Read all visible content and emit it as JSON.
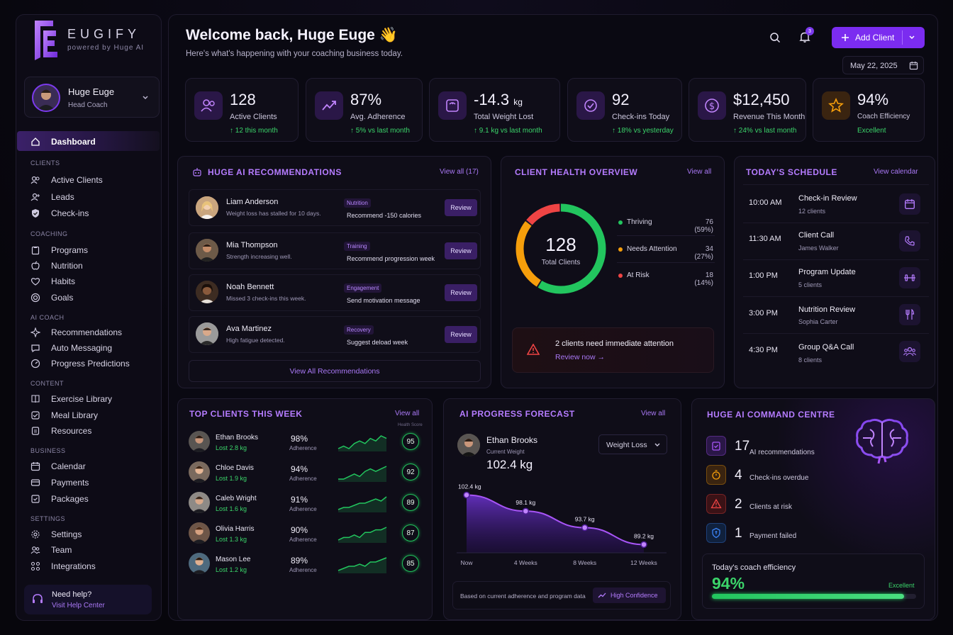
{
  "brand": {
    "name": "EUGIFY",
    "tagline": "powered by Huge AI"
  },
  "profile": {
    "name": "Huge Euge",
    "role": "Head Coach"
  },
  "nav": {
    "dashboard": "Dashboard",
    "sections": {
      "clients": "CLIENTS",
      "coaching": "COACHING",
      "ai_coach": "AI COACH",
      "content": "CONTENT",
      "business": "BUSINESS",
      "settings": "SETTINGS"
    },
    "items": {
      "active_clients": "Active Clients",
      "leads": "Leads",
      "check_ins": "Check-ins",
      "programs": "Programs",
      "nutrition": "Nutrition",
      "habits": "Habits",
      "goals": "Goals",
      "recommendations": "Recommendations",
      "auto_messaging": "Auto Messaging",
      "progress_predictions": "Progress Predictions",
      "exercise_library": "Exercise Library",
      "meal_library": "Meal Library",
      "resources": "Resources",
      "calendar": "Calendar",
      "payments": "Payments",
      "packages": "Packages",
      "settings": "Settings",
      "team": "Team",
      "integrations": "Integrations"
    }
  },
  "help": {
    "title": "Need help?",
    "link": "Visit Help Center"
  },
  "header": {
    "title": "Welcome back, Huge Euge 👋",
    "subtitle": "Here's what's happening with your coaching business today.",
    "notifications": "3",
    "add_client": "Add Client",
    "date": "May 22, 2025"
  },
  "stats": {
    "active_clients": {
      "value": "128",
      "label": "Active Clients",
      "change": "↑ 12 this month"
    },
    "adherence": {
      "value": "87%",
      "label": "Avg. Adherence",
      "change": "↑ 5% vs last month"
    },
    "weight_lost": {
      "value": "-14.3",
      "unit": "kg",
      "label": "Total Weight Lost",
      "change": "↑ 9.1 kg vs last month"
    },
    "checkins": {
      "value": "92",
      "label": "Check-ins Today",
      "change": "↑ 18% vs yesterday"
    },
    "revenue": {
      "value": "$12,450",
      "label": "Revenue This Month",
      "change": "↑ 24% vs last month"
    },
    "efficiency": {
      "value": "94%",
      "label": "Coach Efficiency",
      "change": "Excellent"
    }
  },
  "recommendations": {
    "title": "HUGE AI RECOMMENDATIONS",
    "view_all": "View all (17)",
    "items": [
      {
        "name": "Liam Anderson",
        "note": "Weight loss has stalled for 10 days.",
        "tag": "Nutrition",
        "action": "Recommend -150 calories",
        "button": "Review"
      },
      {
        "name": "Mia Thompson",
        "note": "Strength increasing well.",
        "tag": "Training",
        "action": "Recommend progression week",
        "button": "Review"
      },
      {
        "name": "Noah Bennett",
        "note": "Missed 3 check-ins this week.",
        "tag": "Engagement",
        "action": "Send motivation message",
        "button": "Review"
      },
      {
        "name": "Ava Martinez",
        "note": "High fatigue detected.",
        "tag": "Recovery",
        "action": "Suggest deload week",
        "button": "Review"
      }
    ],
    "footer": "View All Recommendations"
  },
  "health": {
    "title": "CLIENT HEALTH OVERVIEW",
    "view_all": "View all",
    "total": "128",
    "total_label": "Total Clients",
    "segments": [
      {
        "label": "Thriving",
        "value": "76 (59%)",
        "fraction": 0.59,
        "color": "#22c55e"
      },
      {
        "label": "Needs Attention",
        "value": "34 (27%)",
        "fraction": 0.27,
        "color": "#f59e0b"
      },
      {
        "label": "At Risk",
        "value": "18 (14%)",
        "fraction": 0.14,
        "color": "#ef4444"
      }
    ],
    "alert": "2 clients need immediate attention",
    "alert_link": "Review now →"
  },
  "schedule": {
    "title": "TODAY'S SCHEDULE",
    "view": "View calendar",
    "items": [
      {
        "time": "10:00 AM",
        "title": "Check-in Review",
        "sub": "12 clients",
        "icon": "calendar-icon"
      },
      {
        "time": "11:30 AM",
        "title": "Client Call",
        "sub": "James Walker",
        "icon": "phone-icon"
      },
      {
        "time": "1:00 PM",
        "title": "Program Update",
        "sub": "5 clients",
        "icon": "dumbbell-icon"
      },
      {
        "time": "3:00 PM",
        "title": "Nutrition Review",
        "sub": "Sophia Carter",
        "icon": "utensils-icon"
      },
      {
        "time": "4:30 PM",
        "title": "Group Q&A Call",
        "sub": "8 clients",
        "icon": "group-icon"
      }
    ]
  },
  "top_clients": {
    "title": "TOP CLIENTS THIS WEEK",
    "view_all": "View all",
    "score_label": "Health Score",
    "items": [
      {
        "name": "Ethan Brooks",
        "lost": "Lost 2.8 kg",
        "pct": "98%",
        "adh": "Adherence",
        "score": "95",
        "spark": [
          3,
          4,
          3,
          5,
          6,
          5,
          7,
          6,
          8,
          7
        ]
      },
      {
        "name": "Chloe Davis",
        "lost": "Lost 1.9 kg",
        "pct": "94%",
        "adh": "Adherence",
        "score": "92",
        "spark": [
          3,
          3,
          4,
          5,
          4,
          6,
          7,
          6,
          7,
          8
        ]
      },
      {
        "name": "Caleb Wright",
        "lost": "Lost 1.6 kg",
        "pct": "91%",
        "adh": "Adherence",
        "score": "89",
        "spark": [
          2,
          3,
          3,
          4,
          5,
          5,
          6,
          7,
          6,
          8
        ]
      },
      {
        "name": "Olivia Harris",
        "lost": "Lost 1.3 kg",
        "pct": "90%",
        "adh": "Adherence",
        "score": "87",
        "spark": [
          3,
          4,
          4,
          5,
          4,
          6,
          6,
          7,
          7,
          8
        ]
      },
      {
        "name": "Mason Lee",
        "lost": "Lost 1.2 kg",
        "pct": "89%",
        "adh": "Adherence",
        "score": "85",
        "spark": [
          2,
          3,
          4,
          4,
          5,
          4,
          6,
          6,
          7,
          8
        ]
      }
    ]
  },
  "forecast": {
    "title": "AI PROGRESS FORECAST",
    "view_all": "View all",
    "client": "Ethan Brooks",
    "current_label": "Current Weight",
    "current": "102.4 kg",
    "goal_select": "Weight Loss",
    "footer": "Based on current adherence and program data",
    "confidence": "High Confidence"
  },
  "chart_data": {
    "type": "area",
    "categories": [
      "Now",
      "4 Weeks",
      "8 Weeks",
      "12 Weeks"
    ],
    "x": [
      0,
      4,
      8,
      12
    ],
    "values": [
      102.4,
      98.1,
      93.7,
      89.2
    ],
    "labels": [
      "102.4 kg",
      "98.1 kg",
      "93.7 kg",
      "89.2 kg"
    ],
    "ylim": [
      87,
      104
    ],
    "color": "#a855f7"
  },
  "command": {
    "title": "HUGE AI COMMAND CENTRE",
    "items": [
      {
        "num": "17",
        "label": "AI recommendations",
        "color": "#a855f7",
        "bg": "#2a1747",
        "icon": "clipboard-icon"
      },
      {
        "num": "4",
        "label": "Check-ins overdue",
        "color": "#f59e0b",
        "bg": "#3a2410",
        "icon": "timer-icon"
      },
      {
        "num": "2",
        "label": "Clients at risk",
        "color": "#ef4444",
        "bg": "#3a1216",
        "icon": "warning-icon"
      },
      {
        "num": "1",
        "label": "Payment failed",
        "color": "#3b82f6",
        "bg": "#10213d",
        "icon": "card-icon"
      }
    ],
    "efficiency_label": "Today's coach efficiency",
    "efficiency_value": "94%",
    "efficiency_fraction": 0.94,
    "efficiency_status": "Excellent"
  }
}
